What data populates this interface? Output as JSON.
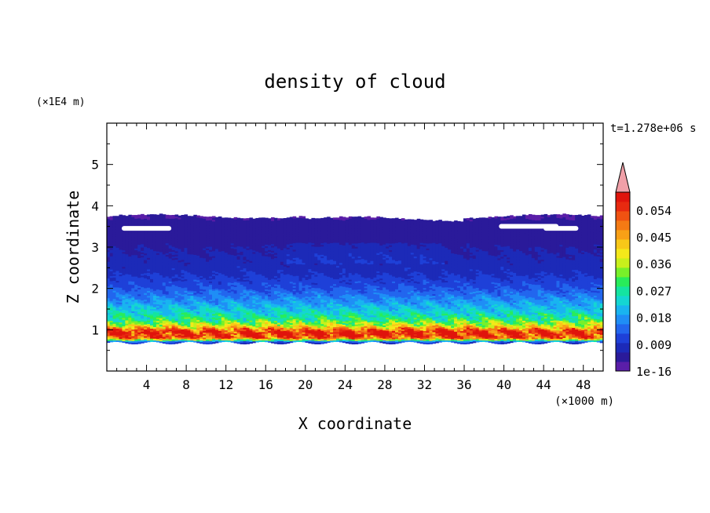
{
  "chart_data": {
    "type": "heatmap",
    "title": "density of cloud",
    "xlabel": "X coordinate",
    "ylabel": "Z coordinate",
    "x_unit": "(×1000 m)",
    "y_unit": "(×1E4 m)",
    "time_label": "t=1.278e+06 s",
    "xlim": [
      0,
      50
    ],
    "ylim": [
      0,
      6
    ],
    "x_ticks": [
      4,
      8,
      12,
      16,
      20,
      24,
      28,
      32,
      36,
      40,
      44,
      48
    ],
    "y_ticks": [
      1,
      2,
      3,
      4,
      5
    ],
    "colorbar": {
      "tick_labels": [
        "0.054",
        "0.045",
        "0.036",
        "0.027",
        "0.018",
        "0.009",
        "1e-16"
      ],
      "min": 0,
      "max": 0.06,
      "extend": "max",
      "levels": [
        {
          "value": 0.0015,
          "color": "#5a1ea8"
        },
        {
          "value": 0.006,
          "color": "#2a1a9a"
        },
        {
          "value": 0.009,
          "color": "#1c2ab8"
        },
        {
          "value": 0.012,
          "color": "#1e40d8"
        },
        {
          "value": 0.015,
          "color": "#2266ee"
        },
        {
          "value": 0.018,
          "color": "#1f8ef6"
        },
        {
          "value": 0.021,
          "color": "#19b4f0"
        },
        {
          "value": 0.024,
          "color": "#14d6d2"
        },
        {
          "value": 0.027,
          "color": "#14e4a0"
        },
        {
          "value": 0.03,
          "color": "#28ec5a"
        },
        {
          "value": 0.033,
          "color": "#78f02a"
        },
        {
          "value": 0.036,
          "color": "#c8f01c"
        },
        {
          "value": 0.039,
          "color": "#f4e81a"
        },
        {
          "value": 0.042,
          "color": "#f8c818"
        },
        {
          "value": 0.045,
          "color": "#f8a016"
        },
        {
          "value": 0.048,
          "color": "#f47a14"
        },
        {
          "value": 0.051,
          "color": "#f05212"
        },
        {
          "value": 0.054,
          "color": "#e82a10"
        },
        {
          "value": 0.057,
          "color": "#e0140c"
        }
      ],
      "overflow_color": "#f0a0a8"
    },
    "profile": [
      {
        "z": 0.7,
        "density": 0.009
      },
      {
        "z": 0.8,
        "density": 0.05
      },
      {
        "z": 0.95,
        "density": 0.055
      },
      {
        "z": 1.1,
        "density": 0.036
      },
      {
        "z": 1.25,
        "density": 0.027
      },
      {
        "z": 1.45,
        "density": 0.022
      },
      {
        "z": 1.7,
        "density": 0.017
      },
      {
        "z": 2.0,
        "density": 0.012
      },
      {
        "z": 2.4,
        "density": 0.008
      },
      {
        "z": 2.9,
        "density": 0.006
      },
      {
        "z": 3.3,
        "density": 0.004
      },
      {
        "z": 3.7,
        "density": 0.0015
      }
    ],
    "cloud_bottom": 0.68,
    "cloud_top": 3.72
  }
}
